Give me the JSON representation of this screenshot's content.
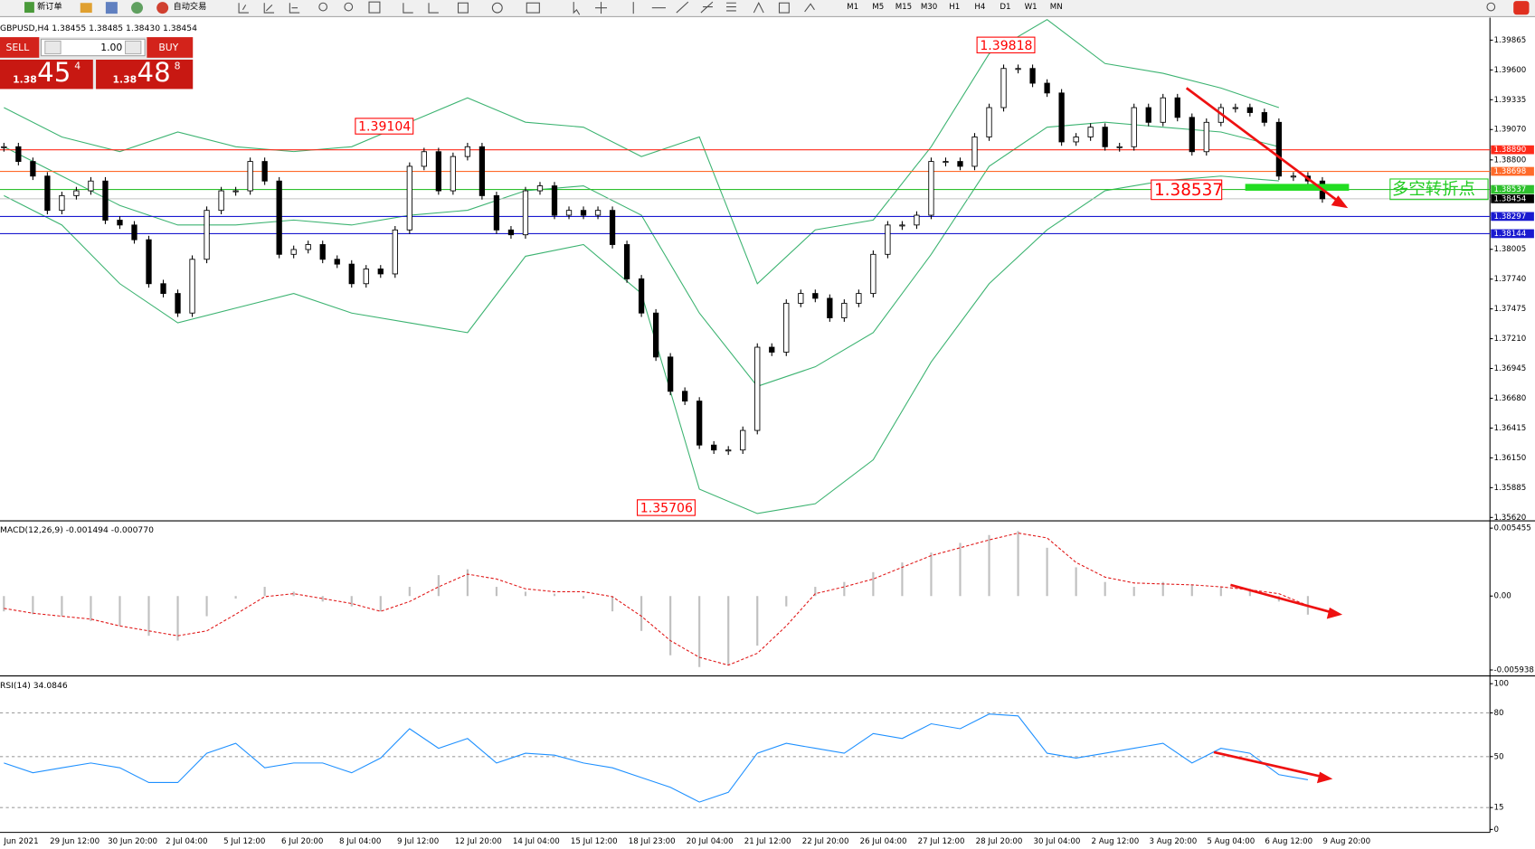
{
  "toolbar": {
    "new_order": "新订单",
    "auto_trading": "自动交易",
    "timeframes": [
      "M1",
      "M5",
      "M15",
      "M30",
      "H1",
      "H4",
      "D1",
      "W1",
      "MN"
    ]
  },
  "trade_panel": {
    "sell": "SELL",
    "buy": "BUY",
    "lot": "1.00",
    "sell_price": {
      "big": "1.38",
      "pips": "45",
      "fraction": "4"
    },
    "buy_price": {
      "big": "1.38",
      "pips": "48",
      "fraction": "8"
    }
  },
  "chart_data": [
    {
      "type": "candlestick",
      "title": "GBPUSD,H4  1.38455 1.38485 1.38430 1.38454",
      "values": [
        1.38917,
        1.38786,
        1.38656,
        1.38351,
        1.38482,
        1.38525,
        1.38612,
        1.38264,
        1.38221,
        1.3809,
        1.37699,
        1.37612,
        1.37438,
        1.37916,
        1.38351,
        1.38525,
        1.38525,
        1.38786,
        1.38612,
        1.3796,
        1.38003,
        1.38047,
        1.37916,
        1.37873,
        1.37699,
        1.3783,
        1.37786,
        1.38177,
        1.38743,
        1.38873,
        1.38525,
        1.3883,
        1.38917,
        1.38482,
        1.38177,
        1.38134,
        1.38525,
        1.38569,
        1.38308,
        1.38351,
        1.38308,
        1.38351,
        1.38047,
        1.37742,
        1.37438,
        1.37047,
        1.36742,
        1.36655,
        1.36264,
        1.3622,
        1.3622,
        1.36394,
        1.37134,
        1.3709,
        1.37525,
        1.37612,
        1.37569,
        1.37395,
        1.37525,
        1.37612,
        1.3796,
        1.38221,
        1.38221,
        1.38308,
        1.38786,
        1.38786,
        1.38743,
        1.39004,
        1.39265,
        1.39613,
        1.39613,
        1.39482,
        1.39395,
        1.3896,
        1.39004,
        1.39091,
        1.38917,
        1.38917,
        1.39265,
        1.39134,
        1.39352,
        1.39178,
        1.38873,
        1.39134,
        1.39265,
        1.39265,
        1.39221,
        1.39134,
        1.38656,
        1.38656,
        1.38612,
        1.38454
      ],
      "upper_band": [
        1.39265,
        1.39004,
        1.38874,
        1.39048,
        1.38917,
        1.38874,
        1.38917,
        1.39135,
        1.39352,
        1.39135,
        1.39091,
        1.3883,
        1.39004,
        1.37699,
        1.38178,
        1.38265,
        1.38917,
        1.39744,
        1.40048,
        1.39657,
        1.3957,
        1.39439,
        1.39265
      ],
      "middle_band": [
        1.38917,
        1.38656,
        1.38395,
        1.38221,
        1.38221,
        1.38265,
        1.38221,
        1.38308,
        1.38352,
        1.38526,
        1.38569,
        1.38308,
        1.37438,
        1.36786,
        1.3696,
        1.37264,
        1.3796,
        1.38743,
        1.39091,
        1.39135,
        1.39091,
        1.39048,
        1.38917
      ],
      "lower_band": [
        1.38482,
        1.38221,
        1.37699,
        1.37351,
        1.37482,
        1.37612,
        1.37438,
        1.37351,
        1.37264,
        1.37943,
        1.38047,
        1.37612,
        1.35872,
        1.35655,
        1.35742,
        1.36133,
        1.37003,
        1.37699,
        1.38178,
        1.38526,
        1.38613,
        1.38656,
        1.38613
      ],
      "band_color": "#3cb371",
      "up_color": "#ffffff",
      "down_color": "#000000",
      "ylim": [
        1.35603,
        1.40048
      ],
      "yticks": [
        1.39865,
        {
          "value": 1.396,
          "label": "1.39600"
        },
        1.39335,
        {
          "value": 1.3907,
          "label": "1.39070"
        },
        {
          "value": 1.388,
          "label": "1.38800"
        },
        1.38005,
        {
          "value": 1.3774,
          "label": "1.37740"
        },
        1.37475,
        {
          "value": 1.3721,
          "label": "1.37210"
        },
        1.36945,
        {
          "value": 1.3668,
          "label": "1.36680"
        },
        1.36415,
        {
          "value": 1.3615,
          "label": "1.36150"
        },
        1.35885,
        {
          "value": 1.3562,
          "label": "1.35620"
        }
      ],
      "levels": [
        {
          "value": 1.3889,
          "label": "1.38890",
          "color": "#ff2a1a"
        },
        {
          "value": 1.38698,
          "label": "1.38698",
          "color": "#ff6a2a"
        },
        {
          "value": 1.38537,
          "label": "1.38537",
          "color": "#2ec02e"
        },
        {
          "value": 1.38454,
          "label": "1.38454",
          "color": "#000000"
        },
        {
          "value": 1.38297,
          "label": "1.38297",
          "color": "#1a1ad0"
        },
        {
          "value": 1.38144,
          "label": "1.38144",
          "color": "#1a1ad0"
        }
      ],
      "annotations": [
        "1.39104",
        "1.39818",
        "1.35706",
        "1.38537",
        "多空转折点"
      ],
      "x_labels": [
        "Jun 2021",
        "29 Jun 12:00",
        "30 Jun 20:00",
        "2 Jul 04:00",
        "5 Jul 12:00",
        "6 Jul 20:00",
        "8 Jul 04:00",
        "9 Jul 12:00",
        "12 Jul 20:00",
        "14 Jul 04:00",
        "15 Jul 12:00",
        "18 Jul 23:00",
        "20 Jul 04:00",
        "21 Jul 12:00",
        "22 Jul 20:00",
        "26 Jul 04:00",
        "27 Jul 12:00",
        "28 Jul 20:00",
        "30 Jul 04:00",
        "2 Aug 12:00",
        "3 Aug 20:00",
        "5 Aug 04:00",
        "6 Aug 12:00",
        "9 Aug 20:00"
      ]
    },
    {
      "type": "macd",
      "title": "MACD(12,26,9) -0.001494 -0.000770",
      "histogram": [
        -0.00123,
        -0.00146,
        -0.00162,
        -0.00201,
        -0.0024,
        -0.00319,
        -0.00358,
        -0.00162,
        -0.0002,
        0.00074,
        0.00035,
        -0.00044,
        -0.00083,
        -0.00123,
        0.00074,
        0.00168,
        0.00215,
        0.00074,
        0.00035,
        0.00019,
        -0.0002,
        -0.00123,
        -0.0028,
        -0.00476,
        -0.0057,
        -0.00555,
        -0.00398,
        -0.00083,
        0.00074,
        0.00113,
        0.00192,
        0.0027,
        0.00349,
        0.00427,
        0.0049,
        0.00522,
        0.00388,
        0.00231,
        0.00113,
        0.00074,
        0.00113,
        0.0009,
        0.00074,
        0.00058,
        -0.00044,
        -0.001494
      ],
      "signal": [
        -0.00099,
        -0.00138,
        -0.00162,
        -0.00185,
        -0.0024,
        -0.0028,
        -0.00319,
        -0.0028,
        -0.00146,
        -5e-05,
        0.00019,
        -0.0002,
        -0.0006,
        -0.00123,
        -0.00044,
        0.00074,
        0.00176,
        0.00137,
        0.00058,
        0.00035,
        0.00035,
        -5e-05,
        -0.00162,
        -0.00358,
        -0.00492,
        -0.00555,
        -0.0046,
        -0.0024,
        0.00019,
        0.00074,
        0.00137,
        0.00231,
        0.00325,
        0.00388,
        0.00451,
        0.00506,
        0.00467,
        0.0027,
        0.00152,
        0.00105,
        0.00097,
        0.0009,
        0.00074,
        0.0005,
        0.00019,
        -0.00077
      ],
      "histogram_color": "#c0c0c0",
      "signal_color": "#e01818",
      "ylim": [
        -0.006333,
        0.005924
      ],
      "yticks": [
        0.005455,
        {
          "value": 0,
          "label": "0.00"
        },
        -0.005938
      ]
    },
    {
      "type": "rsi",
      "title": "RSI(14) 34.0846",
      "values": [
        45.6,
        38.9,
        42.3,
        45.6,
        42.3,
        32.2,
        32.2,
        52.3,
        59.1,
        42.3,
        45.6,
        45.6,
        38.9,
        49.0,
        69.1,
        55.7,
        62.4,
        45.6,
        52.3,
        51.0,
        45.6,
        42.3,
        35.6,
        28.9,
        18.8,
        25.5,
        52.3,
        59.1,
        55.7,
        52.3,
        65.8,
        62.4,
        72.5,
        69.1,
        79.2,
        77.9,
        52.3,
        49.0,
        52.3,
        55.7,
        59.1,
        45.6,
        55.7,
        52.3,
        37.6,
        34.0846
      ],
      "color": "#1e90ff",
      "ylim": [
        -2.0,
        104.7
      ],
      "yticks": [
        100,
        80,
        50,
        15,
        0
      ],
      "grid_ticks": [
        80,
        50,
        15
      ]
    }
  ]
}
